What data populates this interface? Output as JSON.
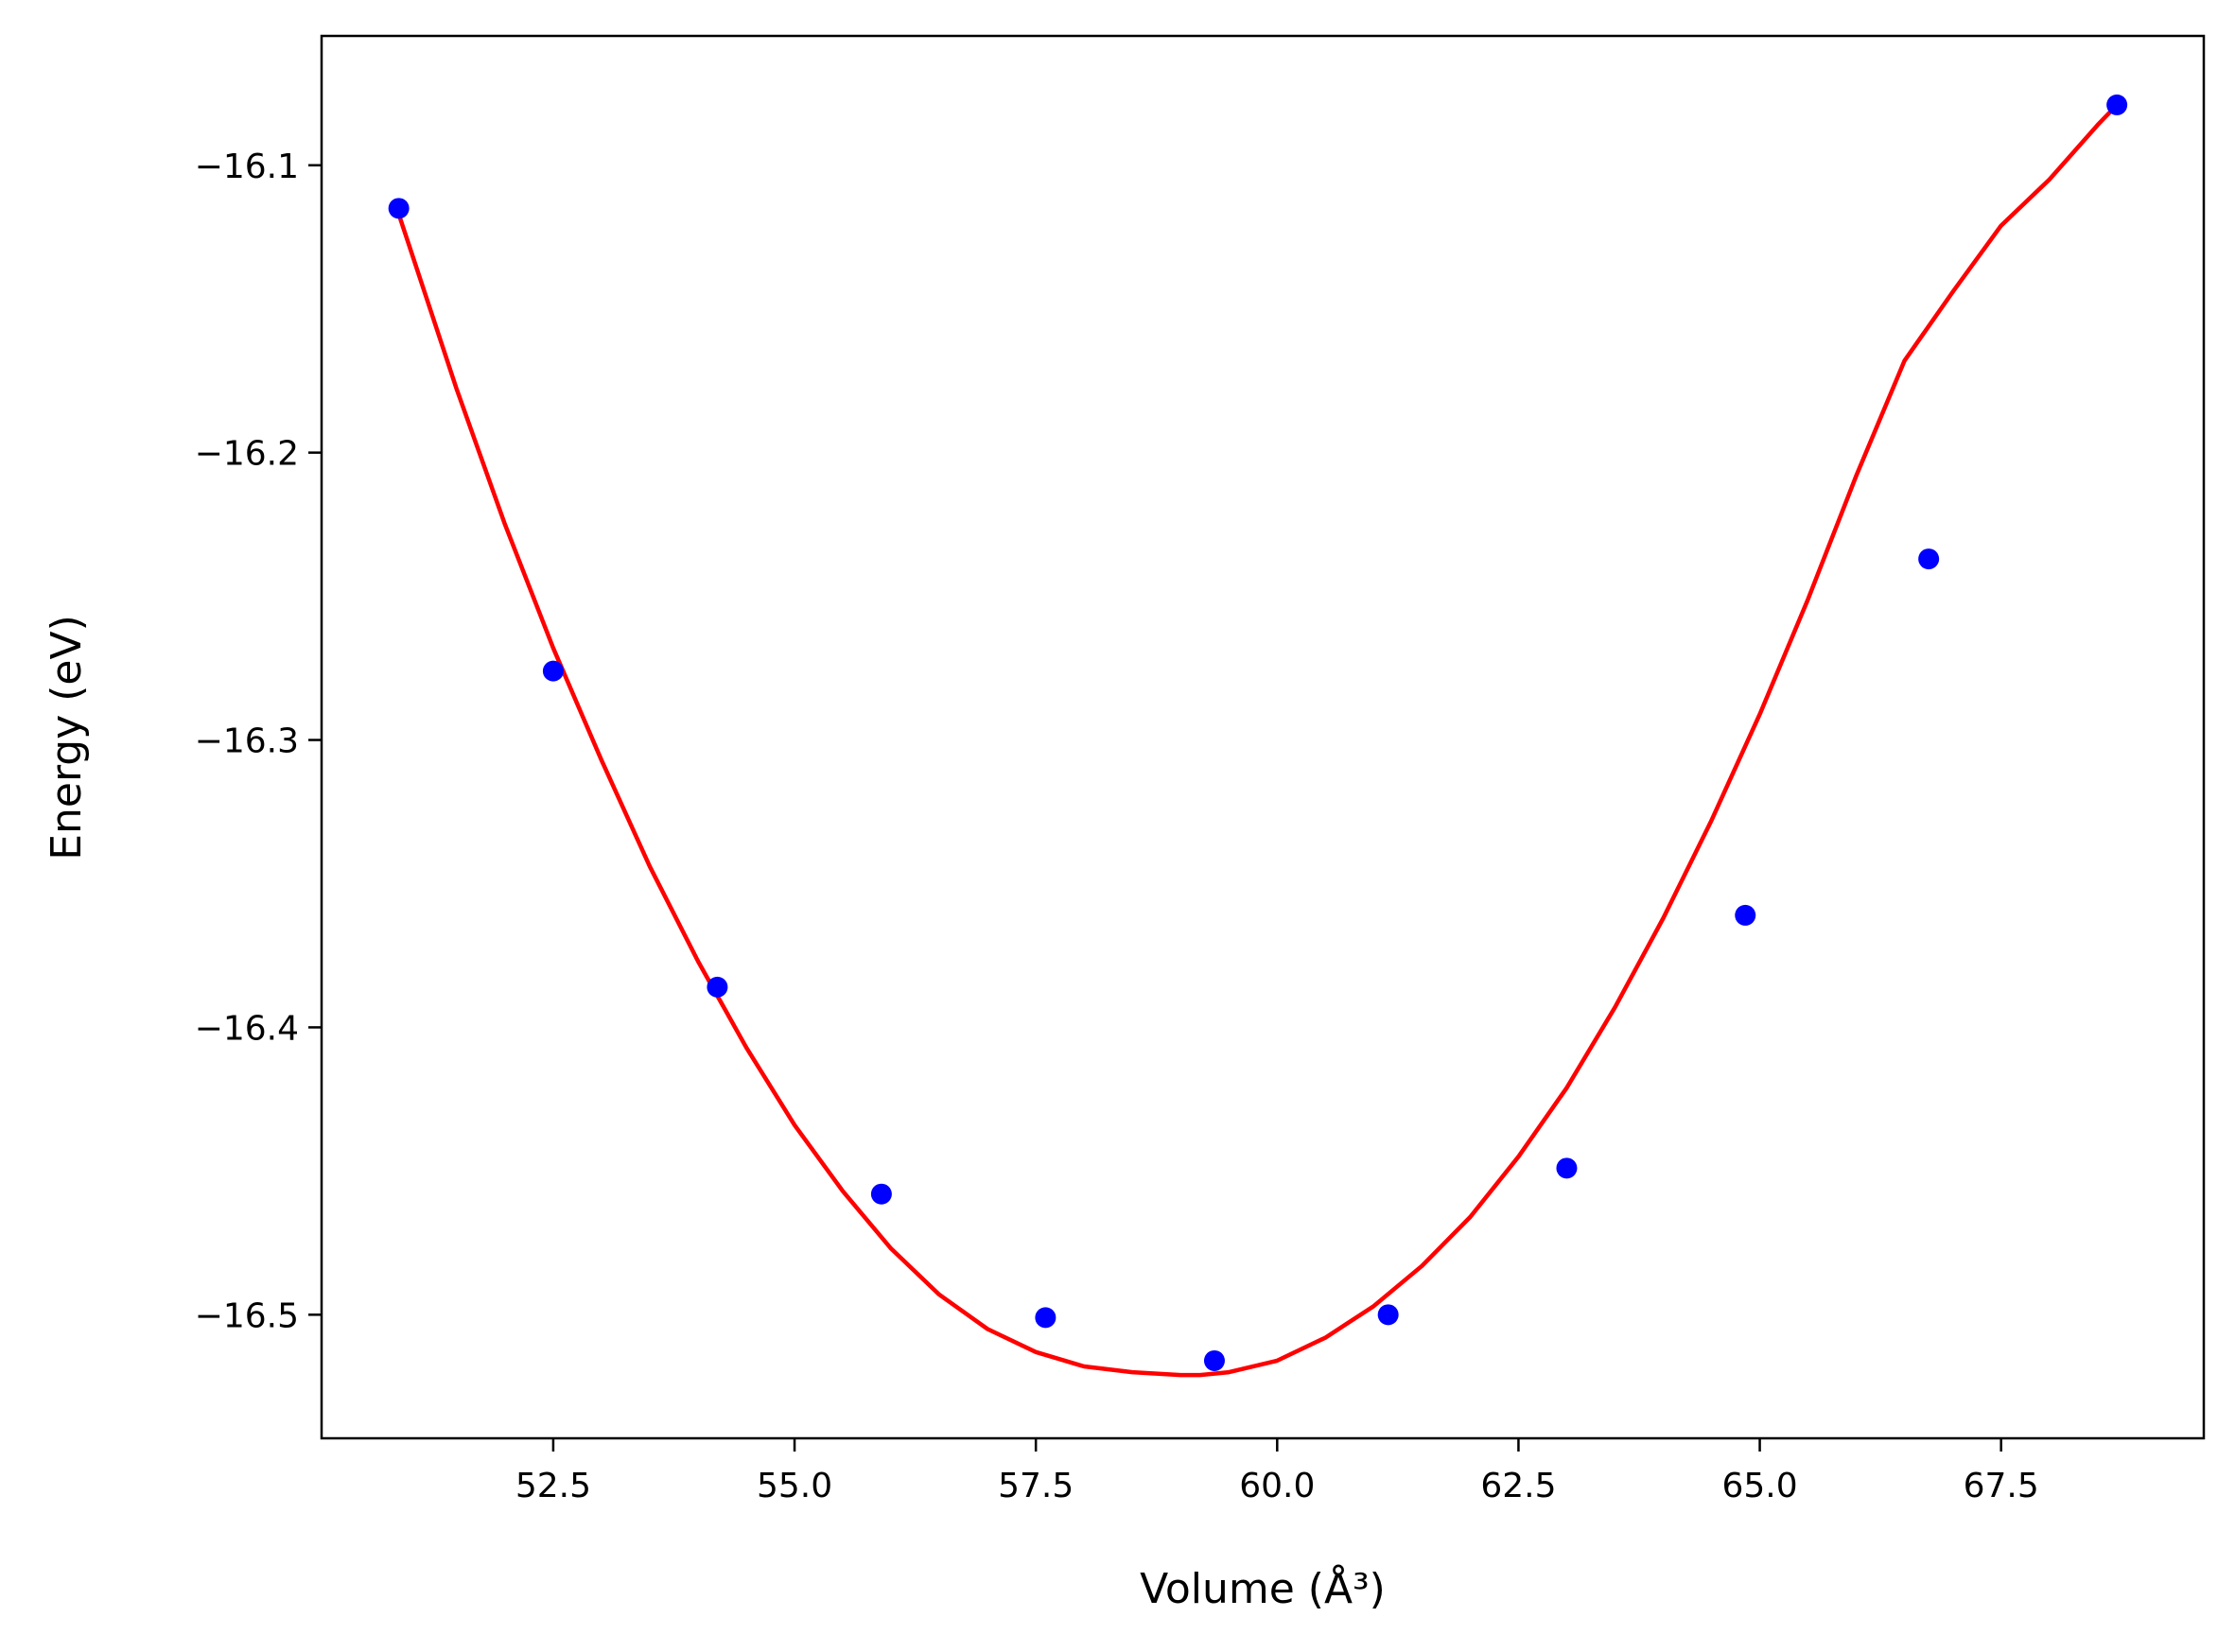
{
  "chart_data": {
    "type": "scatter",
    "title": "",
    "xlabel": "Volume (Å³)",
    "ylabel": "Energy (eV)",
    "xlim": [
      50.1,
      69.6
    ],
    "ylim": [
      -16.543,
      -16.055
    ],
    "xticks": [
      52.5,
      55.0,
      57.5,
      60.0,
      62.5,
      65.0,
      67.5
    ],
    "xtick_labels": [
      "52.5",
      "55.0",
      "57.5",
      "60.0",
      "62.5",
      "65.0",
      "67.5"
    ],
    "yticks": [
      -16.1,
      -16.2,
      -16.3,
      -16.4,
      -16.5
    ],
    "ytick_labels": [
      "−16.1",
      "−16.2",
      "−16.3",
      "−16.4",
      "−16.5"
    ],
    "grid": false,
    "legend": "none",
    "series": [
      {
        "kind": "points",
        "color": "#0000ff",
        "x": [
          50.9,
          52.5,
          54.2,
          55.9,
          57.6,
          59.35,
          61.15,
          63.0,
          64.85,
          66.75,
          68.7
        ],
        "y": [
          -16.115,
          -16.276,
          -16.386,
          -16.458,
          -16.501,
          -16.516,
          -16.5,
          -16.449,
          -16.361,
          -16.237,
          -16.079
        ]
      },
      {
        "kind": "fit-line",
        "color": "#ff0000",
        "x": [
          50.9,
          51.5,
          52.0,
          52.5,
          53.0,
          53.5,
          54.0,
          54.5,
          55.0,
          55.5,
          56.0,
          56.5,
          57.0,
          57.5,
          58.0,
          58.5,
          59.0,
          59.2,
          59.5,
          60.0,
          60.5,
          61.0,
          61.5,
          62.0,
          62.5,
          63.0,
          63.5,
          64.0,
          64.5,
          65.0,
          65.5,
          66.0,
          66.5,
          67.0,
          67.5,
          68.0,
          68.5,
          68.7
        ],
        "y": [
          -16.117,
          -16.178,
          -16.225,
          -16.268,
          -16.307,
          -16.344,
          -16.377,
          -16.407,
          -16.434,
          -16.457,
          -16.477,
          -16.493,
          -16.505,
          -16.513,
          -16.518,
          -16.52,
          -16.521,
          -16.521,
          -16.52,
          -16.516,
          -16.508,
          -16.497,
          -16.483,
          -16.466,
          -16.445,
          -16.421,
          -16.393,
          -16.362,
          -16.328,
          -16.291,
          -16.251,
          -16.208,
          -16.168,
          -16.144,
          -16.121,
          -16.105,
          -16.086,
          -16.079
        ]
      }
    ]
  }
}
